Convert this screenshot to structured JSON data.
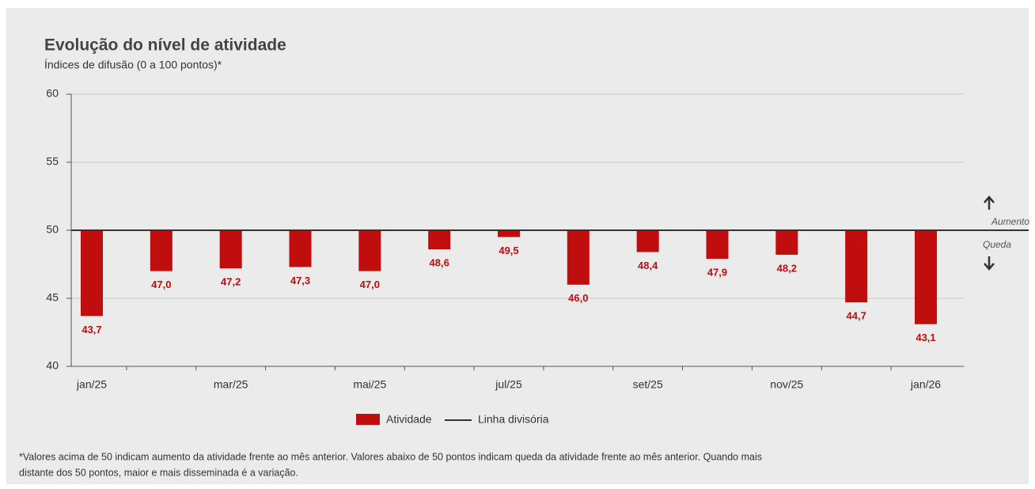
{
  "chart_data": {
    "type": "bar",
    "title": "Evolução do nível de atividade",
    "subtitle": "Índices de difusão (0 a 100 pontos)*",
    "categories": [
      "jan/25",
      null,
      "mar/25",
      null,
      "mai/25",
      null,
      "jul/25",
      null,
      "set/25",
      null,
      "nov/25",
      null,
      "jan/26"
    ],
    "series": [
      {
        "name": "Atividade",
        "color": "#c00d0d",
        "values": [
          43.7,
          47.0,
          47.2,
          47.3,
          47.0,
          48.6,
          49.5,
          46.0,
          48.4,
          47.9,
          48.2,
          44.7,
          43.1
        ],
        "value_labels": [
          "43,7",
          "47,0",
          "47,2",
          "47,3",
          "47,0",
          "48,6",
          "49,5",
          "46,0",
          "48,4",
          "47,9",
          "48,2",
          "44,7",
          "43,1"
        ]
      }
    ],
    "divider": {
      "name": "Linha divisória",
      "value": 50,
      "color": "#333333"
    },
    "ylim": [
      40,
      60
    ],
    "yticks": [
      40,
      45,
      50,
      55,
      60
    ],
    "grid": true,
    "annotations": {
      "up": "Aumento",
      "down": "Queda"
    },
    "footnote": [
      "*Valores acima de 50 indicam aumento da atividade frente ao mês anterior. Valores abaixo de 50 pontos indicam queda da atividade frente ao mês anterior. Quando mais",
      "distante dos 50 pontos, maior e mais disseminada é a variação."
    ]
  }
}
